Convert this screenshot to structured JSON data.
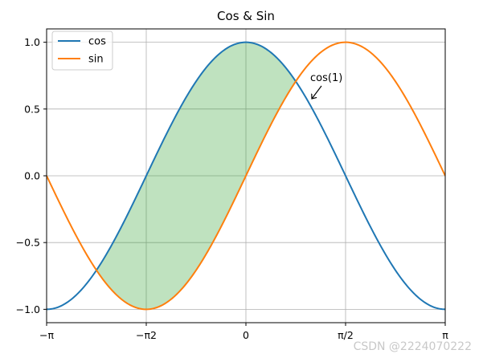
{
  "chart_data": {
    "type": "line",
    "title": "Cos & Sin",
    "xlabel": "",
    "ylabel": "",
    "xlim": [
      -3.14159265,
      3.14159265
    ],
    "ylim": [
      -1.1,
      1.1
    ],
    "grid": true,
    "legend": {
      "placement": "top-left",
      "entries": [
        "cos",
        "sin"
      ]
    },
    "x_ticks": [
      {
        "value": -3.14159265,
        "label": "−π"
      },
      {
        "value": -1.57079633,
        "label": "−π2"
      },
      {
        "value": 0,
        "label": "0"
      },
      {
        "value": 1.57079633,
        "label": "π/2"
      },
      {
        "value": 3.14159265,
        "label": "π"
      }
    ],
    "y_ticks": [
      {
        "value": -1.0,
        "label": "−1.0"
      },
      {
        "value": -0.5,
        "label": "−0.5"
      },
      {
        "value": 0.0,
        "label": "0.0"
      },
      {
        "value": 0.5,
        "label": "0.5"
      },
      {
        "value": 1.0,
        "label": "1.0"
      }
    ],
    "series": [
      {
        "name": "cos",
        "function": "cos",
        "samples": 256,
        "color": "#1f77b4"
      },
      {
        "name": "sin",
        "function": "sin",
        "samples": 256,
        "color": "#ff7f0e"
      }
    ],
    "fill_between": {
      "upper": "cos",
      "lower": "sin",
      "x_range": [
        -2.35619449,
        0.78539816
      ],
      "color": "#2ca02c",
      "alpha": 0.3
    },
    "annotation": {
      "text": "cos(1)",
      "xy": [
        1.0,
        0.5403
      ],
      "text_xy": [
        1.0,
        0.7
      ]
    }
  },
  "watermark": "CSDN @2224070222"
}
